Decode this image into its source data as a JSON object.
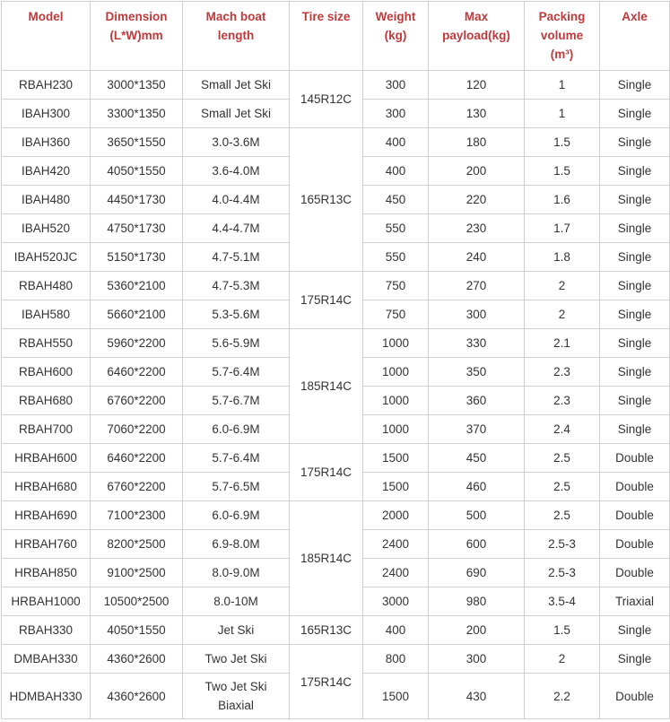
{
  "table": {
    "header_color": "#c0393b",
    "headers": [
      "Model",
      "Dimension (L*W)mm",
      "Mach boat length",
      "Tire size",
      "Weight (kg)",
      "Max payload(kg)",
      "Packing volume (m³)",
      "Axle"
    ],
    "rows": [
      {
        "model": "RBAH230",
        "dimension": "3000*1350",
        "length": "Small Jet Ski",
        "tire": "145R12C",
        "tire_rows": 2,
        "weight": "300",
        "payload": "120",
        "volume": "1",
        "axle": "Single"
      },
      {
        "model": "IBAH300",
        "dimension": "3300*1350",
        "length": "Small Jet Ski",
        "weight": "300",
        "payload": "130",
        "volume": "1",
        "axle": "Single"
      },
      {
        "model": "IBAH360",
        "dimension": "3650*1550",
        "length": "3.0-3.6M",
        "tire": "165R13C",
        "tire_rows": 5,
        "weight": "400",
        "payload": "180",
        "volume": "1.5",
        "axle": "Single"
      },
      {
        "model": "IBAH420",
        "dimension": "4050*1550",
        "length": "3.6-4.0M",
        "weight": "400",
        "payload": "200",
        "volume": "1.5",
        "axle": "Single"
      },
      {
        "model": "IBAH480",
        "dimension": "4450*1730",
        "length": "4.0-4.4M",
        "weight": "450",
        "payload": "220",
        "volume": "1.6",
        "axle": "Single"
      },
      {
        "model": "IBAH520",
        "dimension": "4750*1730",
        "length": "4.4-4.7M",
        "weight": "550",
        "payload": "230",
        "volume": "1.7",
        "axle": "Single"
      },
      {
        "model": "IBAH520JC",
        "dimension": "5150*1730",
        "length": "4.7-5.1M",
        "weight": "550",
        "payload": "240",
        "volume": "1.8",
        "axle": "Single"
      },
      {
        "model": "RBAH480",
        "dimension": "5360*2100",
        "length": "4.7-5.3M",
        "tire": "175R14C",
        "tire_rows": 2,
        "weight": "750",
        "payload": "270",
        "volume": "2",
        "axle": "Single"
      },
      {
        "model": "IBAH580",
        "dimension": "5660*2100",
        "length": "5.3-5.6M",
        "weight": "750",
        "payload": "300",
        "volume": "2",
        "axle": "Single"
      },
      {
        "model": "RBAH550",
        "dimension": "5960*2200",
        "length": "5.6-5.9M",
        "tire": "185R14C",
        "tire_rows": 4,
        "weight": "1000",
        "payload": "330",
        "volume": "2.1",
        "axle": "Single"
      },
      {
        "model": "RBAH600",
        "dimension": "6460*2200",
        "length": "5.7-6.4M",
        "weight": "1000",
        "payload": "350",
        "volume": "2.3",
        "axle": "Single"
      },
      {
        "model": "RBAH680",
        "dimension": "6760*2200",
        "length": "5.7-6.7M",
        "weight": "1000",
        "payload": "360",
        "volume": "2.3",
        "axle": "Single"
      },
      {
        "model": "RBAH700",
        "dimension": "7060*2200",
        "length": "6.0-6.9M",
        "weight": "1000",
        "payload": "370",
        "volume": "2.4",
        "axle": "Single"
      },
      {
        "model": "HRBAH600",
        "dimension": "6460*2200",
        "length": "5.7-6.4M",
        "tire": "175R14C",
        "tire_rows": 2,
        "weight": "1500",
        "payload": "450",
        "volume": "2.5",
        "axle": "Double"
      },
      {
        "model": "HRBAH680",
        "dimension": "6760*2200",
        "length": "5.7-6.5M",
        "weight": "1500",
        "payload": "460",
        "volume": "2.5",
        "axle": "Double"
      },
      {
        "model": "HRBAH690",
        "dimension": "7100*2300",
        "length": "6.0-6.9M",
        "tire": "185R14C",
        "tire_rows": 4,
        "weight": "2000",
        "payload": "500",
        "volume": "2.5",
        "axle": "Double"
      },
      {
        "model": "HRBAH760",
        "dimension": "8200*2500",
        "length": "6.9-8.0M",
        "weight": "2400",
        "payload": "600",
        "volume": "2.5-3",
        "axle": "Double"
      },
      {
        "model": "HRBAH850",
        "dimension": "9100*2500",
        "length": "8.0-9.0M",
        "weight": "2400",
        "payload": "690",
        "volume": "2.5-3",
        "axle": "Double"
      },
      {
        "model": "HRBAH1000",
        "dimension": "10500*2500",
        "length": "8.0-10M",
        "weight": "3000",
        "payload": "980",
        "volume": "3.5-4",
        "axle": "Triaxial"
      },
      {
        "model": "RBAH330",
        "dimension": "4050*1550",
        "length": "Jet Ski",
        "tire": "165R13C",
        "tire_rows": 1,
        "weight": "400",
        "payload": "200",
        "volume": "1.5",
        "axle": "Single"
      },
      {
        "model": "DMBAH330",
        "dimension": "4360*2600",
        "length": "Two Jet Ski",
        "tire": "175R14C",
        "tire_rows": 2,
        "weight": "800",
        "payload": "300",
        "volume": "2",
        "axle": "Single"
      },
      {
        "model": "HDMBAH330",
        "dimension": "4360*2600",
        "length": "Two Jet Ski Biaxial",
        "weight": "1500",
        "payload": "430",
        "volume": "2.2",
        "axle": "Double"
      }
    ]
  }
}
